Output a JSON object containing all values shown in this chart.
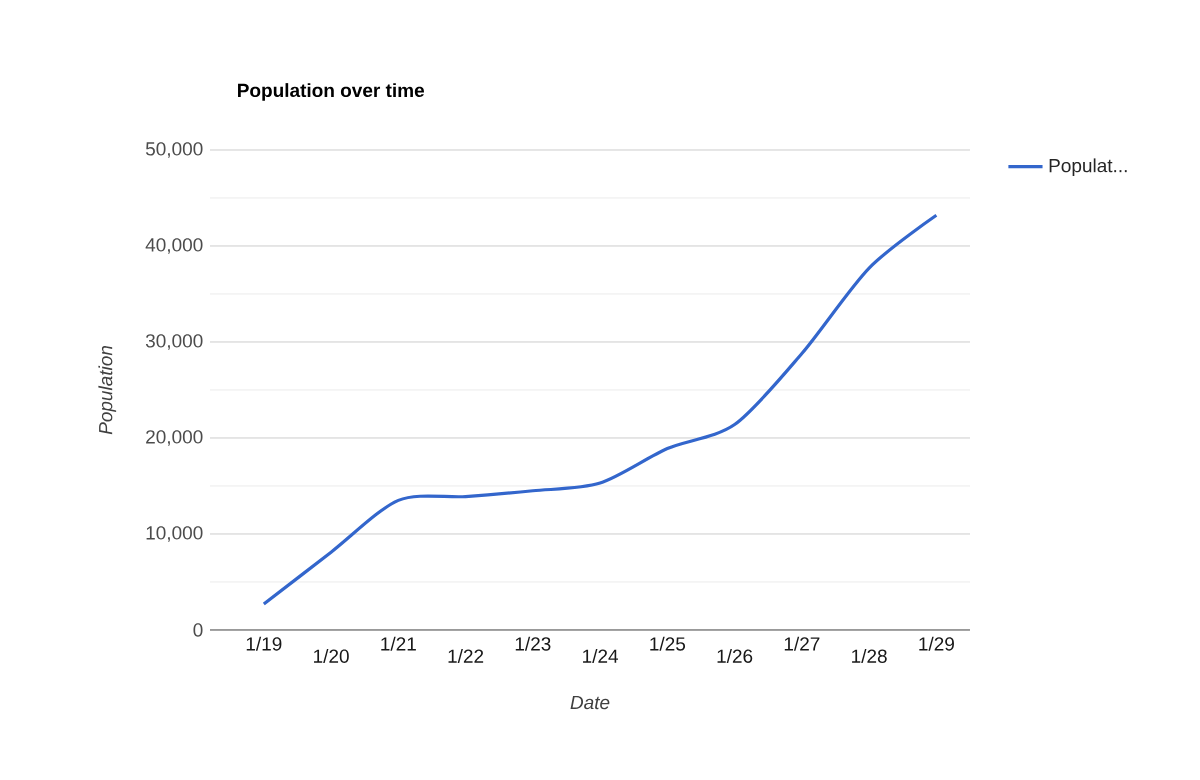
{
  "chart_data": {
    "type": "line",
    "title": "Population over time",
    "xlabel": "Date",
    "ylabel": "Population",
    "categories": [
      "1/19",
      "1/20",
      "1/21",
      "1/22",
      "1/23",
      "1/24",
      "1/25",
      "1/26",
      "1/27",
      "1/28",
      "1/29"
    ],
    "series": [
      {
        "name": "Populat...",
        "color": "#3366cc",
        "values": [
          2700,
          8100,
          13500,
          13900,
          14500,
          15300,
          18900,
          21400,
          28800,
          37700,
          43200
        ]
      }
    ],
    "ylim": [
      0,
      50000
    ],
    "yticks": [
      0,
      {
        "value": 10000,
        "label": "10,000"
      },
      {
        "value": 20000,
        "label": "20,000"
      },
      {
        "value": 30000,
        "label": "30,000"
      },
      {
        "value": 40000,
        "label": "40,000"
      },
      {
        "value": 50000,
        "label": "50,000"
      }
    ],
    "grid": "y",
    "legend": "top right",
    "marker": "none",
    "line_style": "solid"
  }
}
